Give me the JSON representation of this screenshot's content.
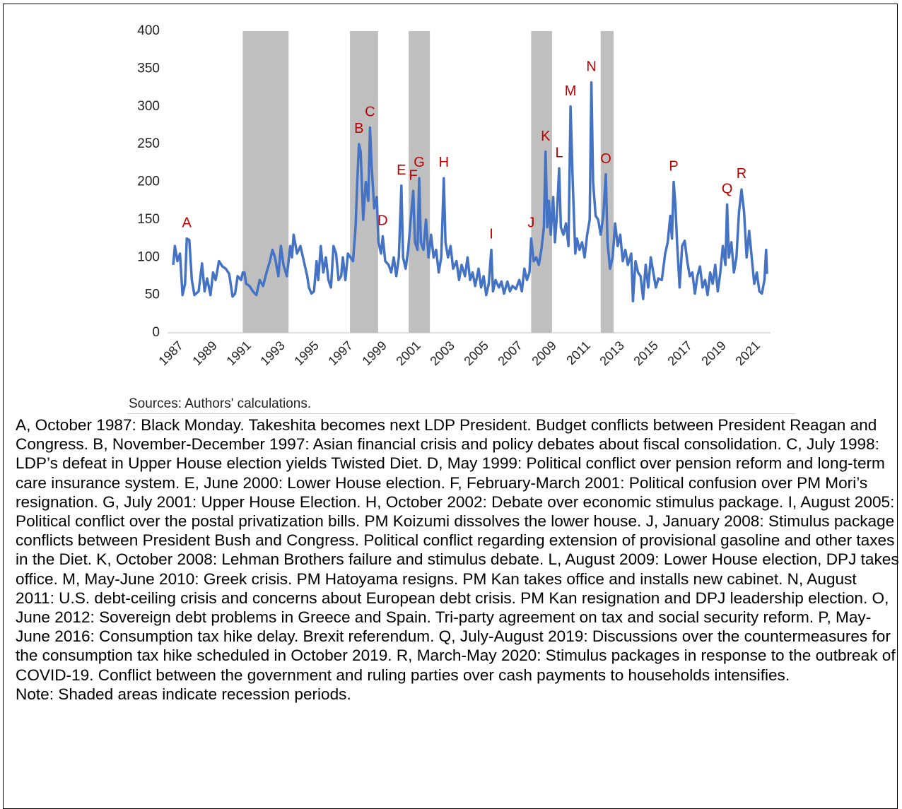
{
  "chart_data": {
    "type": "line",
    "x": [
      1987.0,
      1987.1,
      1987.25,
      1987.4,
      1987.55,
      1987.7,
      1987.8,
      1987.95,
      1988.1,
      1988.25,
      1988.5,
      1988.7,
      1988.85,
      1989.0,
      1989.2,
      1989.35,
      1989.5,
      1989.7,
      1989.9,
      1990.1,
      1990.3,
      1990.5,
      1990.65,
      1990.8,
      1991.0,
      1991.1,
      1991.2,
      1991.3,
      1991.5,
      1991.7,
      1991.9,
      1992.1,
      1992.3,
      1992.5,
      1992.7,
      1992.85,
      1993.0,
      1993.2,
      1993.35,
      1993.5,
      1993.7,
      1993.9,
      1994.0,
      1994.1,
      1994.3,
      1994.5,
      1994.7,
      1994.9,
      1995.0,
      1995.15,
      1995.3,
      1995.45,
      1995.55,
      1995.7,
      1995.85,
      1996.0,
      1996.15,
      1996.3,
      1996.45,
      1996.6,
      1996.75,
      1996.9,
      1997.0,
      1997.15,
      1997.3,
      1997.45,
      1997.6,
      1997.75,
      1997.85,
      1997.95,
      1998.05,
      1998.2,
      1998.35,
      1998.5,
      1998.6,
      1998.7,
      1998.85,
      1999.0,
      1999.1,
      1999.25,
      1999.35,
      1999.5,
      1999.7,
      1999.85,
      2000.0,
      2000.15,
      2000.3,
      2000.45,
      2000.55,
      2000.7,
      2000.85,
      2001.0,
      2001.15,
      2001.25,
      2001.4,
      2001.5,
      2001.6,
      2001.75,
      2001.9,
      2002.05,
      2002.2,
      2002.35,
      2002.5,
      2002.65,
      2002.8,
      2002.95,
      2003.05,
      2003.2,
      2003.35,
      2003.5,
      2003.7,
      2003.85,
      2004.0,
      2004.2,
      2004.35,
      2004.5,
      2004.65,
      2004.8,
      2005.0,
      2005.15,
      2005.3,
      2005.45,
      2005.6,
      2005.75,
      2005.85,
      2006.0,
      2006.2,
      2006.35,
      2006.5,
      2006.7,
      2006.85,
      2007.0,
      2007.2,
      2007.4,
      2007.55,
      2007.7,
      2007.85,
      2008.0,
      2008.1,
      2008.25,
      2008.4,
      2008.55,
      2008.7,
      2008.85,
      2008.95,
      2009.05,
      2009.15,
      2009.25,
      2009.4,
      2009.5,
      2009.6,
      2009.75,
      2009.85,
      2010.0,
      2010.15,
      2010.3,
      2010.42,
      2010.55,
      2010.7,
      2010.8,
      2010.95,
      2011.1,
      2011.25,
      2011.4,
      2011.55,
      2011.65,
      2011.75,
      2011.9,
      2012.05,
      2012.2,
      2012.35,
      2012.5,
      2012.6,
      2012.75,
      2012.9,
      2013.05,
      2013.2,
      2013.35,
      2013.5,
      2013.65,
      2013.8,
      2014.0,
      2014.1,
      2014.25,
      2014.4,
      2014.55,
      2014.7,
      2014.85,
      2015.0,
      2015.15,
      2015.3,
      2015.45,
      2015.6,
      2015.8,
      2016.0,
      2016.15,
      2016.3,
      2016.4,
      2016.5,
      2016.6,
      2016.7,
      2016.85,
      2017.0,
      2017.15,
      2017.3,
      2017.45,
      2017.6,
      2017.75,
      2017.9,
      2018.05,
      2018.2,
      2018.35,
      2018.5,
      2018.65,
      2018.8,
      2018.95,
      2019.1,
      2019.25,
      2019.4,
      2019.55,
      2019.65,
      2019.75,
      2019.9,
      2020.05,
      2020.2,
      2020.35,
      2020.5,
      2020.65,
      2020.8,
      2020.95,
      2021.1,
      2021.25,
      2021.4,
      2021.55,
      2021.7,
      2021.85,
      2021.95,
      2022.0
    ],
    "series": [
      {
        "color": "#4472c4",
        "values": [
          90,
          115,
          95,
          105,
          50,
          65,
          125,
          123,
          70,
          50,
          55,
          92,
          55,
          72,
          50,
          80,
          70,
          95,
          88,
          85,
          78,
          48,
          52,
          75,
          70,
          80,
          80,
          65,
          62,
          55,
          50,
          70,
          62,
          80,
          95,
          110,
          100,
          75,
          115,
          90,
          75,
          115,
          100,
          130,
          105,
          115,
          95,
          75,
          60,
          52,
          55,
          95,
          70,
          115,
          80,
          100,
          70,
          60,
          115,
          105,
          70,
          75,
          100,
          70,
          105,
          100,
          95,
          140,
          200,
          250,
          240,
          150,
          200,
          175,
          272,
          220,
          165,
          180,
          120,
          105,
          128,
          95,
          90,
          80,
          100,
          75,
          100,
          195,
          100,
          85,
          110,
          150,
          188,
          120,
          110,
          205,
          120,
          110,
          150,
          100,
          130,
          100,
          110,
          80,
          100,
          205,
          120,
          100,
          115,
          85,
          95,
          70,
          90,
          75,
          100,
          70,
          80,
          62,
          85,
          60,
          75,
          50,
          65,
          110,
          55,
          70,
          60,
          68,
          52,
          68,
          55,
          62,
          58,
          70,
          55,
          85,
          70,
          80,
          125,
          95,
          100,
          90,
          110,
          140,
          240,
          140,
          175,
          130,
          180,
          120,
          150,
          218,
          140,
          130,
          145,
          115,
          300,
          200,
          105,
          125,
          110,
          120,
          100,
          130,
          150,
          332,
          200,
          155,
          150,
          130,
          155,
          210,
          120,
          85,
          100,
          145,
          115,
          130,
          95,
          110,
          90,
          105,
          42,
          95,
          80,
          75,
          45,
          90,
          60,
          100,
          80,
          60,
          72,
          70,
          105,
          120,
          155,
          125,
          200,
          170,
          120,
          60,
          115,
          122,
          95,
          75,
          80,
          52,
          75,
          88,
          60,
          70,
          50,
          80,
          65,
          90,
          55,
          80,
          115,
          90,
          170,
          100,
          120,
          80,
          100,
          160,
          190,
          160,
          100,
          135,
          100,
          65,
          80,
          55,
          52,
          70,
          110,
          78
        ]
      }
    ],
    "xlim": [
      1987,
      2022
    ],
    "xticks": [
      1987,
      1989,
      1991,
      1993,
      1995,
      1997,
      1999,
      2001,
      2003,
      2005,
      2007,
      2009,
      2011,
      2013,
      2015,
      2017,
      2019,
      2021
    ],
    "ylim": [
      0,
      400
    ],
    "yticks": [
      0,
      50,
      100,
      150,
      200,
      250,
      300,
      350,
      400
    ],
    "shaded": [
      [
        1991.1,
        1993.8
      ],
      [
        1997.42,
        1999.08
      ],
      [
        2000.88,
        2002.13
      ],
      [
        2008.1,
        2009.33
      ],
      [
        2012.2,
        2012.96
      ]
    ],
    "shade_color": "#bfbfbf",
    "annotation_color": "#c00000",
    "annotations": [
      {
        "label": "A",
        "x": 1987.8
      },
      {
        "label": "B",
        "x": 1997.95
      },
      {
        "label": "C",
        "x": 1998.6
      },
      {
        "label": "D",
        "x": 1999.35
      },
      {
        "label": "E",
        "x": 2000.45
      },
      {
        "label": "F",
        "x": 2001.15
      },
      {
        "label": "G",
        "x": 2001.5
      },
      {
        "label": "H",
        "x": 2002.95
      },
      {
        "label": "I",
        "x": 2005.75
      },
      {
        "label": "J",
        "x": 2008.1
      },
      {
        "label": "K",
        "x": 2008.95
      },
      {
        "label": "L",
        "x": 2009.75
      },
      {
        "label": "M",
        "x": 2010.42
      },
      {
        "label": "N",
        "x": 2011.65
      },
      {
        "label": "O",
        "x": 2012.5
      },
      {
        "label": "P",
        "x": 2016.5
      },
      {
        "label": "Q",
        "x": 2019.65
      },
      {
        "label": "R",
        "x": 2020.5
      }
    ],
    "source": "Sources: Authors' calculations.",
    "notes": "A, October 1987: Black Monday. Takeshita becomes next LDP President. Budget conflicts between President Reagan and Congress. B, November-December 1997: Asian financial crisis and policy debates about fiscal consolidation. C, July 1998: LDP’s defeat in Upper House election yields Twisted Diet. D, May 1999: Political conflict over pension reform and long-term care insurance system. E, June 2000: Lower House election. F, February-March 2001: Political confusion over PM Mori’s resignation. G, July 2001: Upper House Election. H, October 2002: Debate over economic stimulus package. I, August 2005: Political conflict over the postal privatization bills. PM Koizumi dissolves the lower house. J, January 2008: Stimulus package conflicts between President Bush and Congress. Political conflict regarding extension of provisional gasoline and other taxes in the Diet. K, October 2008: Lehman Brothers failure and stimulus debate. L, August 2009: Lower House election, DPJ takes office. M, May-June 2010: Greek crisis. PM Hatoyama resigns. PM Kan takes office and installs new cabinet. N, August 2011: U.S. debt-ceiling crisis and concerns about European debt crisis. PM Kan resignation and DPJ leadership election. O, June 2012: Sovereign debt problems in Greece and Spain. Tri-party agreement on tax and social security reform. P, May-June 2016: Consumption tax hike delay. Brexit referendum. Q, July-August 2019: Discussions over the countermeasures for the consumption tax hike scheduled in October 2019. R, March-May 2020: Stimulus packages in response to the outbreak of COVID-19. Conflict between the government and ruling parties over cash payments to households intensifies.",
    "note": "Note: Shaded areas indicate recession periods."
  }
}
